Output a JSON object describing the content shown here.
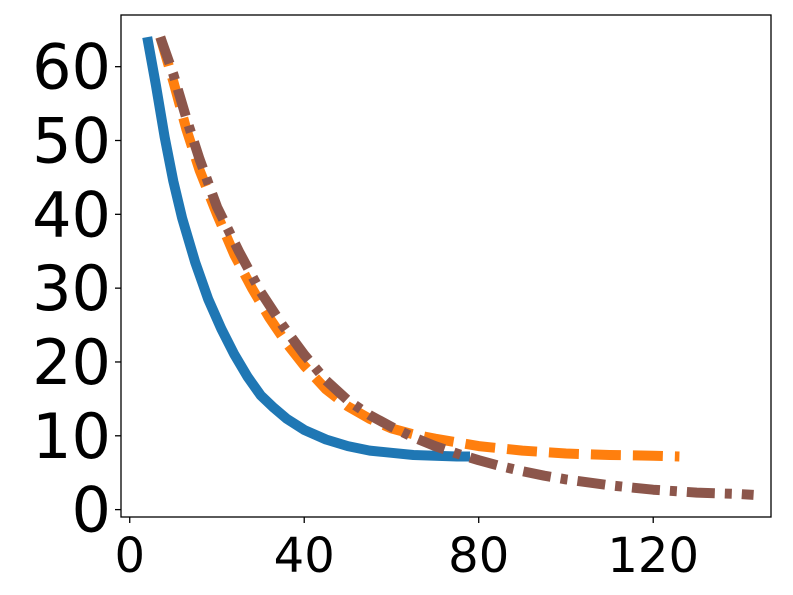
{
  "chart_data": {
    "type": "line",
    "title": "",
    "xlabel": "",
    "ylabel": "",
    "xlim": [
      -2,
      147
    ],
    "ylim": [
      -1,
      67
    ],
    "grid": false,
    "x_ticks": [
      {
        "value": 0,
        "label": "0"
      },
      {
        "value": 40,
        "label": "40"
      },
      {
        "value": 80,
        "label": "80"
      },
      {
        "value": 120,
        "label": "120"
      }
    ],
    "y_ticks": [
      {
        "value": 0,
        "label": "0"
      },
      {
        "value": 10,
        "label": "10"
      },
      {
        "value": 20,
        "label": "20"
      },
      {
        "value": 30,
        "label": "30"
      },
      {
        "value": 40,
        "label": "40"
      },
      {
        "value": 50,
        "label": "50"
      },
      {
        "value": 60,
        "label": "60"
      }
    ],
    "series": [
      {
        "color": "#1f77b4",
        "linestyle": "solid",
        "x": [
          4,
          6,
          8,
          10,
          12,
          15,
          18,
          21,
          24,
          27,
          30,
          33,
          36,
          40,
          45,
          50,
          55,
          60,
          65,
          70,
          75,
          78
        ],
        "y": [
          64,
          57.5,
          50.5,
          44.5,
          39.5,
          33.5,
          28.5,
          24.5,
          21,
          18,
          15.5,
          13.8,
          12.3,
          10.8,
          9.5,
          8.6,
          8,
          7.7,
          7.4,
          7.3,
          7.2,
          7.2
        ]
      },
      {
        "color": "#ff7f0e",
        "linestyle": "dashed",
        "x": [
          7,
          10,
          13,
          16,
          20,
          24,
          28,
          32,
          36,
          40,
          45,
          50,
          55,
          60,
          65,
          70,
          75,
          80,
          90,
          100,
          110,
          120,
          126
        ],
        "y": [
          64,
          58,
          51.5,
          46,
          40,
          34.5,
          30,
          26,
          22.5,
          19.5,
          16.3,
          14,
          12.3,
          11,
          10.2,
          9.6,
          9.1,
          8.6,
          8,
          7.6,
          7.4,
          7.3,
          7.2
        ]
      },
      {
        "color": "#8c564b",
        "linestyle": "dashdot",
        "x": [
          7,
          10,
          13,
          16,
          20,
          25,
          30,
          35,
          40,
          45,
          50,
          55,
          60,
          65,
          70,
          75,
          80,
          85,
          90,
          95,
          100,
          110,
          120,
          130,
          140,
          143
        ],
        "y": [
          64,
          59,
          53,
          47.5,
          41,
          35,
          29.5,
          25,
          21,
          17.5,
          14.8,
          12.8,
          11.2,
          9.8,
          8.6,
          7.6,
          6.7,
          5.9,
          5.2,
          4.6,
          4.1,
          3.3,
          2.7,
          2.3,
          2.1,
          2
        ]
      }
    ]
  }
}
